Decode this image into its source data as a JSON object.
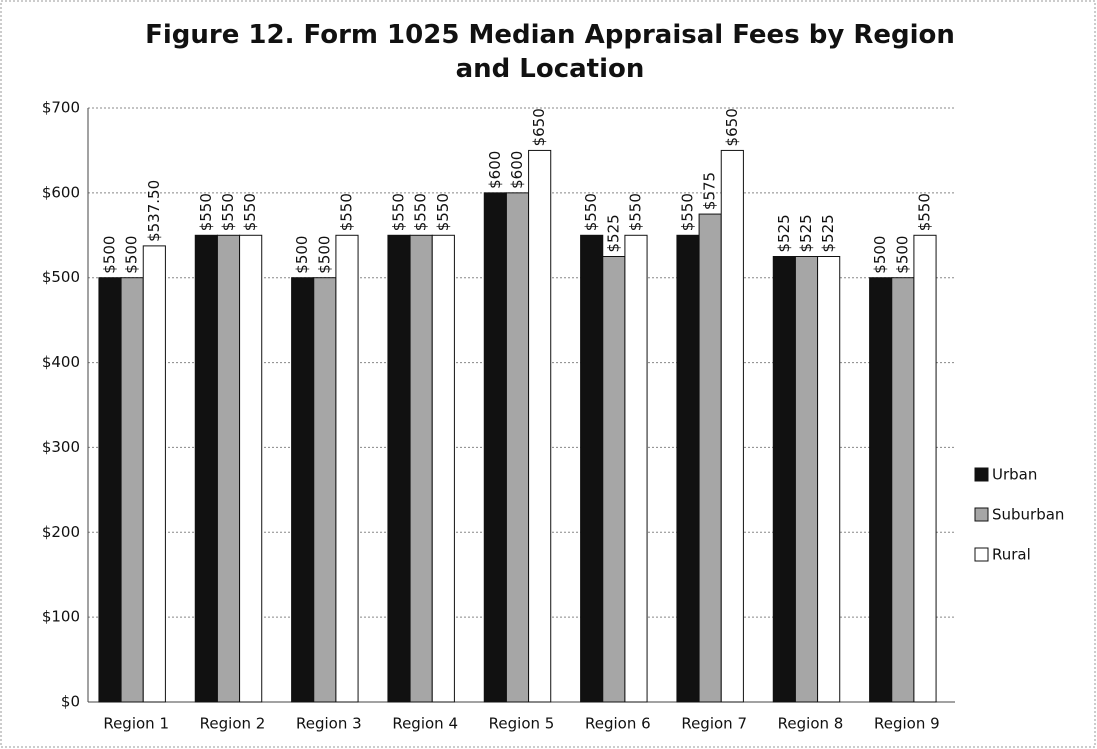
{
  "chart_data": {
    "type": "bar",
    "title": "Figure 12.  Form 1025 Median Appraisal Fees by Region and Location",
    "categories": [
      "Region 1",
      "Region 2",
      "Region 3",
      "Region 4",
      "Region 5",
      "Region 6",
      "Region 7",
      "Region 8",
      "Region 9"
    ],
    "series": [
      {
        "name": "Urban",
        "color": "#111111",
        "values": [
          500,
          550,
          500,
          550,
          600,
          550,
          550,
          525,
          500
        ],
        "value_labels": [
          "$500",
          "$550",
          "$500",
          "$550",
          "$600",
          "$550",
          "$550",
          "$525",
          "$500"
        ]
      },
      {
        "name": "Suburban",
        "color": "#a6a6a6",
        "values": [
          500,
          550,
          500,
          550,
          600,
          525,
          575,
          525,
          500
        ],
        "value_labels": [
          "$500",
          "$550",
          "$500",
          "$550",
          "$600",
          "$525",
          "$575",
          "$525",
          "$500"
        ]
      },
      {
        "name": "Rural",
        "color": "#ffffff",
        "values": [
          537.5,
          550,
          550,
          550,
          650,
          550,
          650,
          525,
          550
        ],
        "value_labels": [
          "$537.50",
          "$550",
          "$550",
          "$550",
          "$650",
          "$550",
          "$650",
          "$525",
          "$550"
        ]
      }
    ],
    "ylim": [
      0,
      700
    ],
    "yticks": [
      {
        "value": 0,
        "label": "$0"
      },
      {
        "value": 100,
        "label": "$100"
      },
      {
        "value": 200,
        "label": "$200"
      },
      {
        "value": 300,
        "label": "$300"
      },
      {
        "value": 400,
        "label": "$400"
      },
      {
        "value": 500,
        "label": "$500"
      },
      {
        "value": 600,
        "label": "$600"
      },
      {
        "value": 700,
        "label": "$700"
      }
    ],
    "grid": true,
    "legend": "right"
  }
}
